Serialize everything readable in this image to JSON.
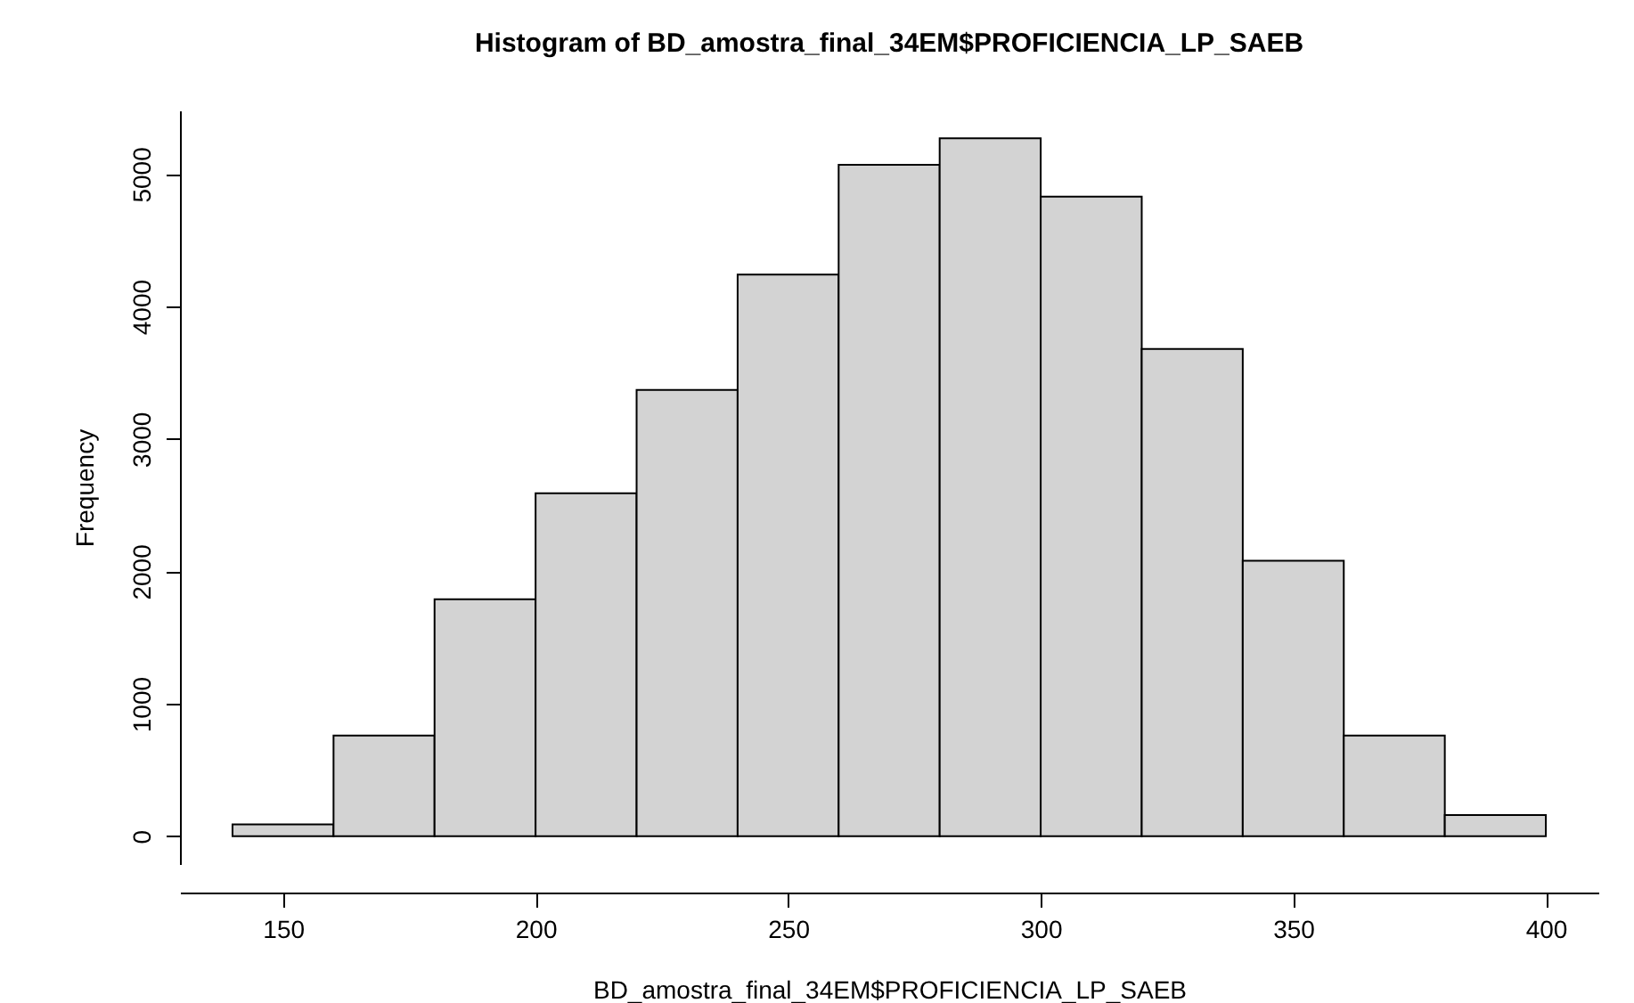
{
  "chart_data": {
    "type": "histogram",
    "title": "Histogram of BD_amostra_final_34EM$PROFICIENCIA_LP_SAEB",
    "xlabel": "BD_amostra_final_34EM$PROFICIENCIA_LP_SAEB",
    "ylabel": "Frequency",
    "bins": [
      140,
      160,
      180,
      200,
      220,
      240,
      260,
      280,
      300,
      320,
      340,
      360,
      380,
      400
    ],
    "values": [
      90,
      760,
      1790,
      2590,
      3370,
      4240,
      5070,
      5270,
      4830,
      3680,
      2080,
      760,
      160
    ],
    "color": "#d3d3d3",
    "xlim": [
      129.6,
      410.4
    ],
    "xticks": [
      150,
      200,
      250,
      300,
      350,
      400
    ],
    "ylim": [
      -210,
      5480
    ],
    "yticks": [
      0,
      1000,
      2000,
      3000,
      4000,
      5000
    ],
    "grid": false
  }
}
